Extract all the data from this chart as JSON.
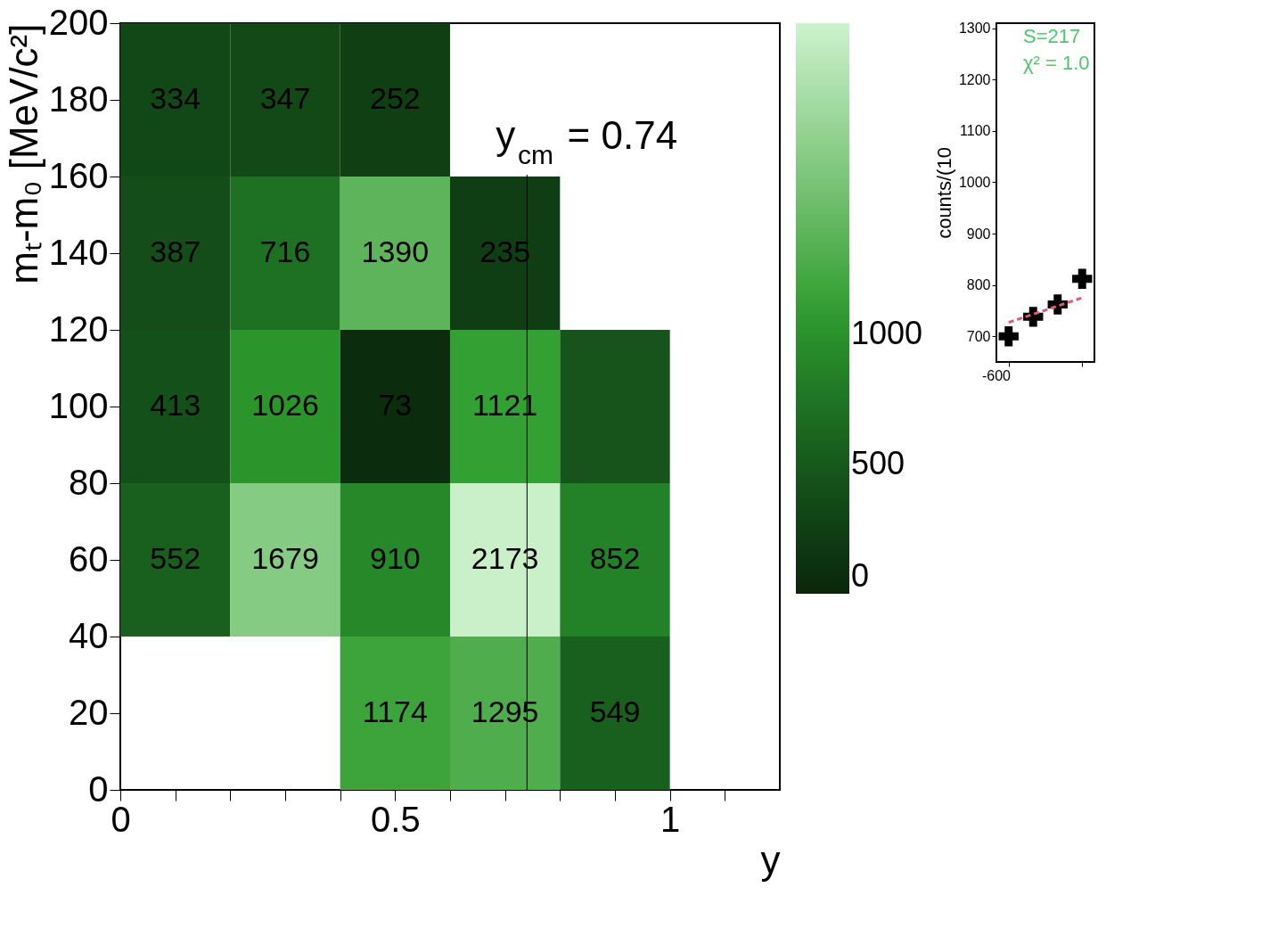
{
  "chart_data": [
    {
      "type": "heatmap",
      "xlabel": "y",
      "ylabel": "mₜ-m₀ [MeV/c²]",
      "cells": [
        [
          334,
          347,
          252,
          null,
          null,
          null
        ],
        [
          387,
          716,
          1390,
          235,
          null,
          null
        ],
        [
          413,
          1026,
          73,
          1121,
          450,
          null
        ],
        [
          552,
          1679,
          910,
          2173,
          852,
          null
        ],
        [
          null,
          null,
          1174,
          1295,
          549,
          null
        ]
      ],
      "cell_labels": [
        [
          "334",
          "347",
          "252",
          null,
          null,
          null
        ],
        [
          "387",
          "716",
          "1390",
          "235",
          null,
          null
        ],
        [
          "413",
          "1026",
          "73",
          "1121",
          null,
          null
        ],
        [
          "552",
          "1679",
          "910",
          "2173",
          "852",
          null
        ],
        [
          null,
          null,
          "1174",
          "1295",
          "549",
          null
        ]
      ],
      "xlim": [
        0,
        1.2
      ],
      "xticks": [
        0,
        {
          "value": 0.1,
          "label": null
        },
        {
          "value": 0.2,
          "label": null
        },
        {
          "value": 0.3,
          "label": null
        },
        {
          "value": 0.4,
          "label": null
        },
        0.5,
        {
          "value": 0.6,
          "label": null
        },
        {
          "value": 0.7,
          "label": null
        },
        {
          "value": 0.8,
          "label": null
        },
        {
          "value": 0.9,
          "label": null
        },
        1,
        {
          "value": 1.1,
          "label": null
        }
      ],
      "ylim": [
        0,
        200
      ],
      "yticks": [
        0,
        20,
        40,
        60,
        80,
        100,
        120,
        140,
        160,
        180,
        200
      ],
      "clim": [
        0,
        2200
      ],
      "cticks": [
        0,
        500,
        1000
      ],
      "ref_lines": [
        {
          "axis": "x",
          "value": 0.74,
          "label": "y$_{cm}$ = 0.74",
          "color": "#000000"
        }
      ]
    },
    {
      "type": "scatter",
      "ylabel": "counts/(10",
      "categories": [
        null,
        null,
        null,
        null
      ],
      "ylim": [
        650,
        1310
      ],
      "yticks": [
        700,
        800,
        900,
        1000,
        1100,
        1200,
        1300
      ],
      "series": [
        {
          "values": [
            700,
            738,
            762,
            812
          ],
          "color": "#000000",
          "marker": "cross"
        },
        {
          "type": "line",
          "values": [
            727,
            743,
            759,
            775
          ],
          "color": "#e05a7a",
          "line_style": "dashed"
        }
      ],
      "annotations": [
        "S=217",
        "χ² = 1.0",
        "-600"
      ]
    }
  ]
}
